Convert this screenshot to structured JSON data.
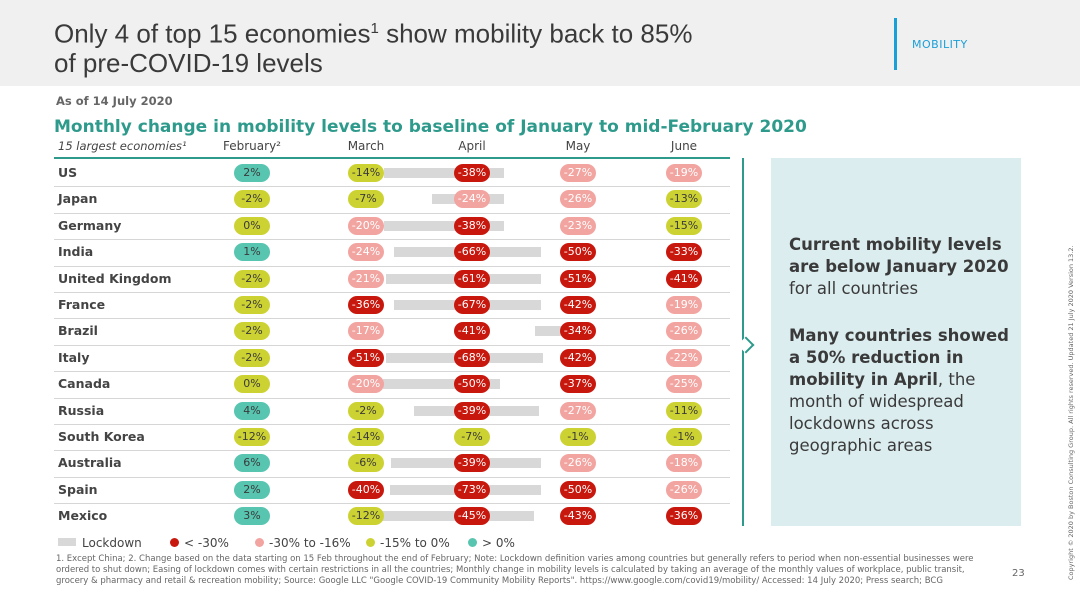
{
  "slide": {
    "title_part1": "Only 4 of top 15 economies",
    "title_sup": "1",
    "title_part2": " show mobility back to 85%",
    "title_line2": "of pre-COVID-19 levels",
    "tag": "MOBILITY",
    "as_of": "As of 14 July 2020",
    "subtitle": "Monthly change in mobility levels to baseline of January to mid-February 2020",
    "page_number": "23"
  },
  "table": {
    "first_header": "15 largest economies¹",
    "month_headers": [
      "February²",
      "March",
      "April",
      "May",
      "June"
    ],
    "rows": [
      {
        "country": "US",
        "values": [
          "2%",
          "-14%",
          "-38%",
          "-27%",
          "-19%"
        ]
      },
      {
        "country": "Japan",
        "values": [
          "-2%",
          "-7%",
          "-24%",
          "-26%",
          "-13%"
        ]
      },
      {
        "country": "Germany",
        "values": [
          "0%",
          "-20%",
          "-38%",
          "-23%",
          "-15%"
        ]
      },
      {
        "country": "India",
        "values": [
          "1%",
          "-24%",
          "-66%",
          "-50%",
          "-33%"
        ]
      },
      {
        "country": "United Kingdom",
        "values": [
          "-2%",
          "-21%",
          "-61%",
          "-51%",
          "-41%"
        ]
      },
      {
        "country": "France",
        "values": [
          "-2%",
          "-36%",
          "-67%",
          "-42%",
          "-19%"
        ]
      },
      {
        "country": "Brazil",
        "values": [
          "-2%",
          "-17%",
          "-41%",
          "-34%",
          "-26%"
        ]
      },
      {
        "country": "Italy",
        "values": [
          "-2%",
          "-51%",
          "-68%",
          "-42%",
          "-22%"
        ]
      },
      {
        "country": "Canada",
        "values": [
          "0%",
          "-20%",
          "-50%",
          "-37%",
          "-25%"
        ]
      },
      {
        "country": "Russia",
        "values": [
          "4%",
          "-2%",
          "-39%",
          "-27%",
          "-11%"
        ]
      },
      {
        "country": "South Korea",
        "values": [
          "-12%",
          "-14%",
          "-7%",
          "-1%",
          "-1%"
        ]
      },
      {
        "country": "Australia",
        "values": [
          "6%",
          "-6%",
          "-39%",
          "-26%",
          "-18%"
        ]
      },
      {
        "country": "Spain",
        "values": [
          "2%",
          "-40%",
          "-73%",
          "-50%",
          "-26%"
        ]
      },
      {
        "country": "Mexico",
        "values": [
          "3%",
          "-12%",
          "-45%",
          "-43%",
          "-36%"
        ]
      }
    ]
  },
  "legend": {
    "lockdown": "Lockdown",
    "red": "< -30%",
    "pink": "-30% to -16%",
    "yellow": "-15% to 0%",
    "teal": "> 0%"
  },
  "colors": {
    "red": "#c8180e",
    "pink": "#f2a4a0",
    "yellow": "#cdd233",
    "teal": "#57c5b0",
    "accent": "#2e9a8c",
    "tag": "#1aa0d8"
  },
  "panel": {
    "p1_bold": "Current mobility levels are below January 2020",
    "p1_rest": " for all countries",
    "p2_bold": "Many countries showed a 50% reduction in mobility in April",
    "p2_rest": ", the month of widespread lockdowns across geographic areas"
  },
  "notes": "1. Except China;  2. Change based on the data starting on 15 Feb throughout the end of February;  Note: Lockdown definition varies among countries but generally refers to period when non-essential businesses were ordered to shut down;  Easing of lockdown comes with certain restrictions in all the countries;  Monthly change in mobility levels is calculated by taking an average of the monthly values of workplace, public transit, grocery & pharmacy and retail & recreation mobility;  Source: Google LLC \"Google COVID-19 Community Mobility Reports\". https://www.google.com/covid19/mobility/ Accessed: 14 July 2020; Press search; BCG",
  "copyright": "Copyright © 2020 by Boston Consulting Group. All rights reserved. Updated 21 July 2020 Version 13.2."
}
